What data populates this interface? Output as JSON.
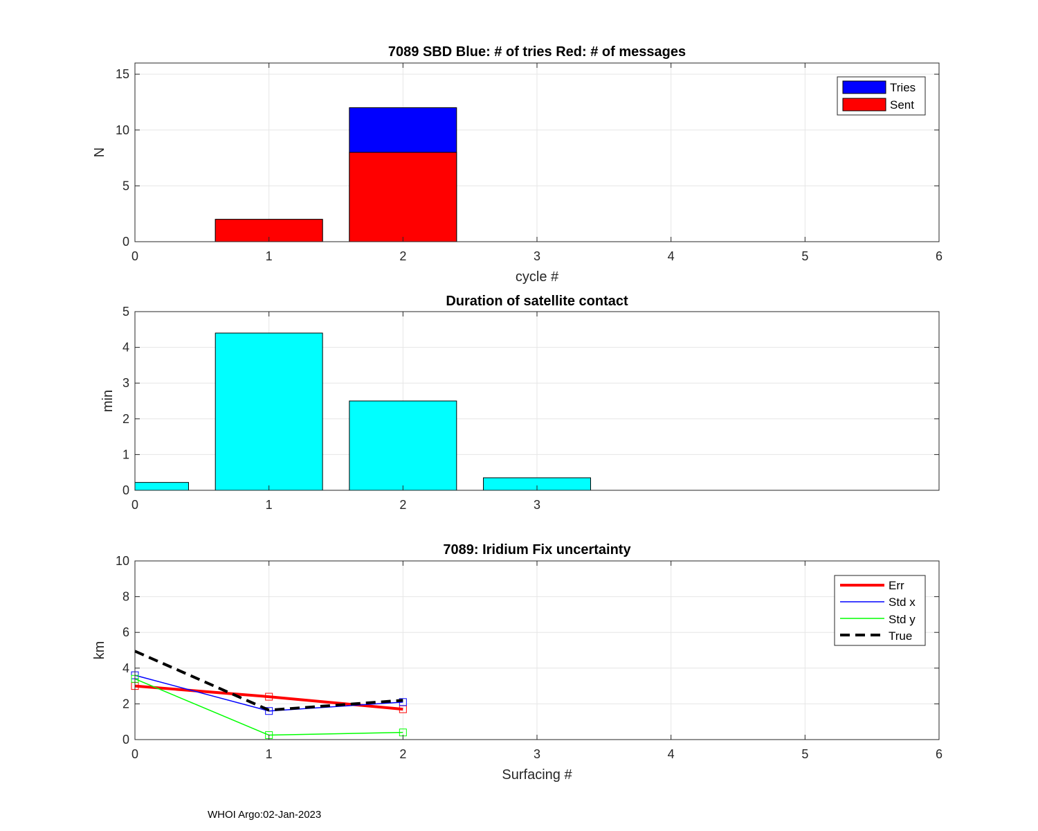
{
  "footer": "WHOI Argo:02-Jan-2023",
  "colors": {
    "tries": "#0000ff",
    "sent": "#ff0000",
    "duration": "#00ffff",
    "err": "#ff0000",
    "stdx": "#0000ff",
    "stdy": "#00ff00",
    "true": "#000000"
  },
  "chart_data": [
    {
      "type": "bar",
      "title": "7089 SBD  Blue: # of tries   Red: # of messages",
      "xlabel": "cycle #",
      "ylabel": "N",
      "xlim": [
        0,
        6
      ],
      "ylim": [
        0,
        16
      ],
      "xticks": [
        0,
        1,
        2,
        3,
        4,
        5,
        6
      ],
      "yticks": [
        0,
        5,
        10,
        15
      ],
      "grid": true,
      "legend_location": "top-right",
      "categories": [
        1,
        2
      ],
      "series": [
        {
          "name": "Tries",
          "values": [
            2,
            12
          ]
        },
        {
          "name": "Sent",
          "values": [
            2,
            8
          ]
        }
      ]
    },
    {
      "type": "bar",
      "title": "Duration of satellite contact",
      "xlabel": "",
      "ylabel": "min",
      "xlim": [
        0,
        6
      ],
      "ylim": [
        0,
        5
      ],
      "xticks": [
        0,
        1,
        2,
        3
      ],
      "yticks": [
        0,
        1,
        2,
        3,
        4,
        5
      ],
      "grid": true,
      "categories": [
        0,
        1,
        2,
        3
      ],
      "values": [
        0.22,
        4.4,
        2.5,
        0.35
      ]
    },
    {
      "type": "line",
      "title": "7089: Iridium Fix uncertainty",
      "xlabel": "Surfacing #",
      "ylabel": "km",
      "xlim": [
        0,
        6
      ],
      "ylim": [
        0,
        10
      ],
      "xticks": [
        0,
        1,
        2,
        3,
        4,
        5,
        6
      ],
      "yticks": [
        0,
        2,
        4,
        6,
        8,
        10
      ],
      "grid": true,
      "legend_location": "top-right",
      "x": [
        0,
        1,
        2
      ],
      "series": [
        {
          "name": "Err",
          "values": [
            3.0,
            2.4,
            1.7
          ]
        },
        {
          "name": "Std x",
          "values": [
            3.6,
            1.6,
            2.1
          ]
        },
        {
          "name": "Std y",
          "values": [
            3.4,
            0.25,
            0.4
          ]
        },
        {
          "name": "True",
          "values": [
            4.95,
            1.65,
            2.2
          ]
        }
      ]
    }
  ]
}
